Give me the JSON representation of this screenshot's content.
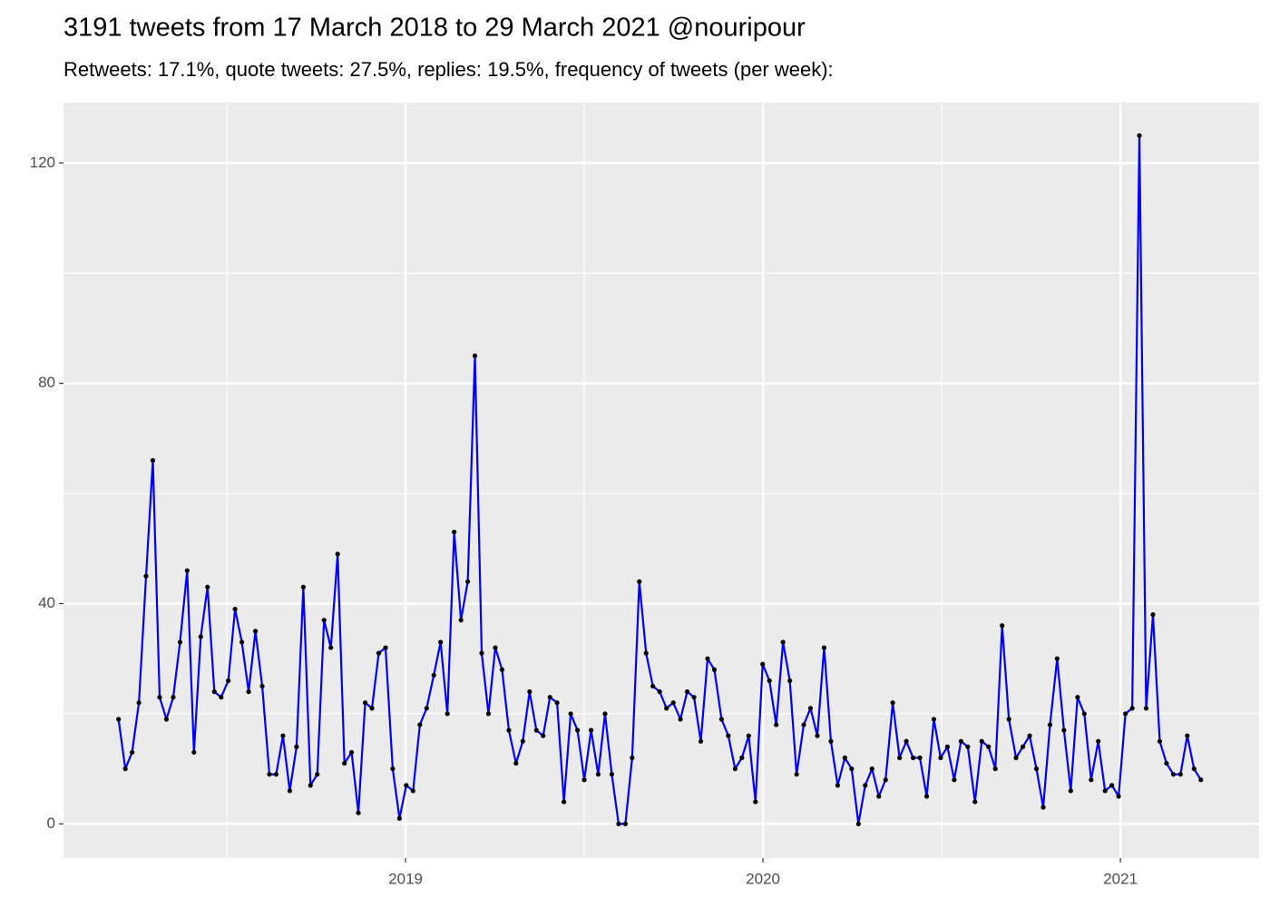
{
  "chart_data": {
    "type": "line",
    "title": "3191 tweets from 17 March 2018 to 29 March 2021 @nouripour",
    "subtitle": "Retweets: 17.1%, quote tweets: 27.5%, replies: 19.5%, frequency of tweets (per week):",
    "x": [
      2018.197,
      2018.216,
      2018.235,
      2018.254,
      2018.274,
      2018.293,
      2018.312,
      2018.331,
      2018.35,
      2018.369,
      2018.389,
      2018.408,
      2018.427,
      2018.446,
      2018.465,
      2018.484,
      2018.504,
      2018.523,
      2018.542,
      2018.561,
      2018.58,
      2018.599,
      2018.619,
      2018.638,
      2018.657,
      2018.676,
      2018.695,
      2018.714,
      2018.734,
      2018.753,
      2018.772,
      2018.791,
      2018.81,
      2018.829,
      2018.849,
      2018.868,
      2018.887,
      2018.906,
      2018.925,
      2018.944,
      2018.964,
      2018.983,
      2019.002,
      2019.021,
      2019.04,
      2019.059,
      2019.079,
      2019.098,
      2019.117,
      2019.136,
      2019.155,
      2019.174,
      2019.194,
      2019.213,
      2019.232,
      2019.251,
      2019.27,
      2019.289,
      2019.309,
      2019.328,
      2019.347,
      2019.366,
      2019.385,
      2019.404,
      2019.424,
      2019.443,
      2019.462,
      2019.481,
      2019.5,
      2019.519,
      2019.539,
      2019.558,
      2019.577,
      2019.596,
      2019.615,
      2019.634,
      2019.654,
      2019.673,
      2019.692,
      2019.711,
      2019.73,
      2019.749,
      2019.769,
      2019.788,
      2019.807,
      2019.826,
      2019.845,
      2019.864,
      2019.884,
      2019.903,
      2019.922,
      2019.941,
      2019.96,
      2019.979,
      2019.999,
      2020.018,
      2020.037,
      2020.056,
      2020.075,
      2020.094,
      2020.114,
      2020.133,
      2020.152,
      2020.171,
      2020.19,
      2020.209,
      2020.229,
      2020.248,
      2020.267,
      2020.286,
      2020.305,
      2020.324,
      2020.343,
      2020.363,
      2020.382,
      2020.401,
      2020.42,
      2020.439,
      2020.458,
      2020.478,
      2020.497,
      2020.516,
      2020.535,
      2020.554,
      2020.573,
      2020.593,
      2020.612,
      2020.631,
      2020.65,
      2020.669,
      2020.688,
      2020.708,
      2020.727,
      2020.746,
      2020.765,
      2020.784,
      2020.803,
      2020.823,
      2020.842,
      2020.861,
      2020.88,
      2020.899,
      2020.918,
      2020.938,
      2020.957,
      2020.976,
      2020.995,
      2021.014,
      2021.033,
      2021.053,
      2021.072,
      2021.091,
      2021.11,
      2021.129,
      2021.148,
      2021.168,
      2021.187,
      2021.206,
      2021.225
    ],
    "series": [
      {
        "color": "#0000ff",
        "point_color": "#000000",
        "values": [
          19,
          10,
          13,
          22,
          45,
          66,
          23,
          19,
          23,
          33,
          46,
          13,
          34,
          43,
          24,
          23,
          26,
          39,
          33,
          24,
          35,
          25,
          9,
          9,
          16,
          6,
          14,
          43,
          7,
          9,
          37,
          32,
          49,
          11,
          13,
          2,
          22,
          21,
          31,
          32,
          10,
          1,
          7,
          6,
          18,
          21,
          27,
          33,
          20,
          53,
          37,
          44,
          85,
          31,
          20,
          32,
          28,
          17,
          11,
          15,
          24,
          17,
          16,
          23,
          22,
          4,
          20,
          17,
          8,
          17,
          9,
          20,
          9,
          0,
          0,
          12,
          44,
          31,
          25,
          24,
          21,
          22,
          19,
          24,
          23,
          15,
          30,
          28,
          19,
          16,
          10,
          12,
          16,
          4,
          29,
          26,
          18,
          33,
          26,
          9,
          18,
          21,
          16,
          32,
          15,
          7,
          12,
          10,
          0,
          7,
          10,
          5,
          8,
          22,
          12,
          15,
          12,
          12,
          5,
          19,
          12,
          14,
          8,
          15,
          14,
          4,
          15,
          14,
          10,
          36,
          19,
          12,
          14,
          16,
          10,
          3,
          18,
          30,
          17,
          6,
          23,
          20,
          8,
          15,
          6,
          7,
          5,
          20,
          21,
          125,
          21,
          38,
          15,
          11,
          9,
          9,
          16,
          10,
          8
        ]
      }
    ],
    "xlim": [
      2018.043,
      2021.388
    ],
    "ylim": [
      -6.2,
      131
    ],
    "xticks": [
      2019,
      2020,
      2021
    ],
    "yticks": [
      0,
      40,
      80,
      120
    ],
    "xminor": [
      2018.5,
      2019.5,
      2020.5
    ],
    "yminor": [
      20,
      60,
      100
    ],
    "grid": true,
    "background": "#ebebeb"
  }
}
